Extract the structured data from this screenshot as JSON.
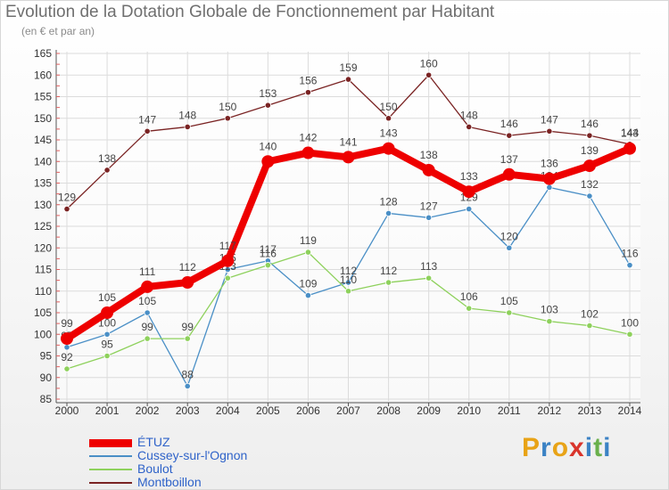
{
  "header": {
    "title": "Evolution de la Dotation Globale de Fonctionnement par Habitant",
    "subtitle": "(en € et par an)"
  },
  "brand": {
    "text": "Proxiti",
    "letters": [
      "P",
      "r",
      "o",
      "x",
      "i",
      "t",
      "i"
    ],
    "colors": [
      "#e8a317",
      "#3b82c4",
      "#e8a317",
      "#d9342b",
      "#3b82c4",
      "#6ab04c",
      "#3b82c4"
    ]
  },
  "chart_data": {
    "type": "line",
    "title": "Evolution de la Dotation Globale de Fonctionnement par Habitant",
    "subtitle": "(en € et par an)",
    "xlabel": "",
    "ylabel": "",
    "x": [
      "2000",
      "2001",
      "2002",
      "2003",
      "2004",
      "2005",
      "2006",
      "2007",
      "2008",
      "2009",
      "2010",
      "2011",
      "2012",
      "2013",
      "2014"
    ],
    "ylim": [
      85,
      165
    ],
    "yticks": [
      85,
      90,
      95,
      100,
      105,
      110,
      115,
      120,
      125,
      130,
      135,
      140,
      145,
      150,
      155,
      160,
      165
    ],
    "grid": true,
    "legend_position": "bottom-left",
    "series": [
      {
        "name": "Montboillon",
        "color": "#7a2323",
        "values": [
          129,
          138,
          147,
          148,
          150,
          153,
          156,
          159,
          150,
          160,
          148,
          146,
          147,
          146,
          144
        ]
      },
      {
        "name": "Cussey-sur-l'Ognon",
        "color": "#4a8fc6",
        "values": [
          97,
          100,
          105,
          88,
          115,
          117,
          109,
          112,
          128,
          127,
          129,
          120,
          134,
          132,
          116
        ]
      },
      {
        "name": "Boulot",
        "color": "#8ed15c",
        "values": [
          92,
          95,
          99,
          99,
          113,
          116,
          119,
          110,
          112,
          113,
          106,
          105,
          103,
          102,
          100
        ]
      },
      {
        "name": "ÉTUZ",
        "color": "#ee0000",
        "values": [
          99,
          105,
          111,
          112,
          117,
          140,
          142,
          141,
          143,
          138,
          133,
          137,
          136,
          139,
          143
        ]
      }
    ]
  }
}
